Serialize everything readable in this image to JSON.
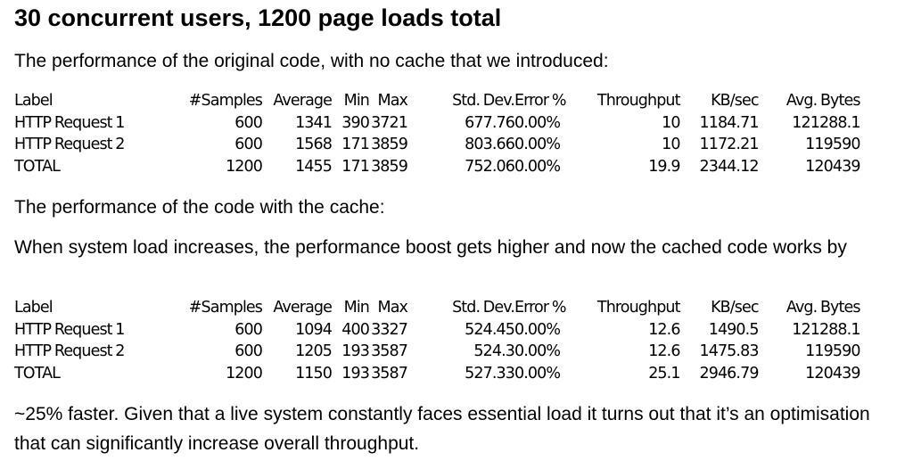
{
  "title": "30 concurrent users, 1200 page loads total",
  "paragraphs": {
    "intro_original": "The performance of the original code, with no cache that we introduced:",
    "intro_cache": "The performance of the code with the cache:",
    "load_increase": "When system load increases, the performance boost gets higher and now the cached code works by",
    "conclusion": "~25% faster. Given that a live system constantly faces essential load it turns out that it’s an optimisation that can significantly increase overall throughput."
  },
  "tables": {
    "headers": [
      "Label",
      "#Samples",
      "Average",
      "Min",
      "Max",
      "Std. Dev.",
      "Error %",
      "Throughput",
      "KB/sec",
      "Avg. Bytes"
    ],
    "original": [
      [
        "HTTP Request 1",
        "600",
        "1341",
        "390",
        "3721",
        "677.76",
        "0.00%",
        "10",
        "1184.71",
        "121288.1"
      ],
      [
        "HTTP Request 2",
        "600",
        "1568",
        "171",
        "3859",
        "803.66",
        "0.00%",
        "10",
        "1172.21",
        "119590"
      ],
      [
        "TOTAL",
        "1200",
        "1455",
        "171",
        "3859",
        "752.06",
        "0.00%",
        "19.9",
        "2344.12",
        "120439"
      ]
    ],
    "cached": [
      [
        "HTTP Request 1",
        "600",
        "1094",
        "400",
        "3327",
        "524.45",
        "0.00%",
        "12.6",
        "1490.5",
        "121288.1"
      ],
      [
        "HTTP Request 2",
        "600",
        "1205",
        "193",
        "3587",
        "524.3",
        "0.00%",
        "12.6",
        "1475.83",
        "119590"
      ],
      [
        "TOTAL",
        "1200",
        "1150",
        "193",
        "3587",
        "527.33",
        "0.00%",
        "25.1",
        "2946.79",
        "120439"
      ]
    ]
  }
}
